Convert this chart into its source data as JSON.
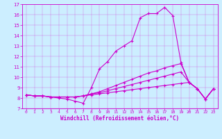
{
  "xlabel": "Windchill (Refroidissement éolien,°C)",
  "xlim": [
    -0.5,
    23.5
  ],
  "ylim": [
    7,
    17
  ],
  "yticks": [
    7,
    8,
    9,
    10,
    11,
    12,
    13,
    14,
    15,
    16,
    17
  ],
  "xticks": [
    0,
    1,
    2,
    3,
    4,
    5,
    6,
    7,
    8,
    9,
    10,
    11,
    12,
    13,
    14,
    15,
    16,
    17,
    18,
    19,
    20,
    21,
    22,
    23
  ],
  "bg_color": "#cceeff",
  "line_color": "#cc00cc",
  "lines": [
    [
      8.3,
      8.2,
      8.2,
      8.1,
      8.0,
      7.9,
      7.7,
      7.5,
      9.0,
      10.8,
      11.5,
      12.5,
      13.0,
      13.5,
      15.7,
      16.1,
      16.1,
      16.7,
      15.9,
      11.4,
      9.5,
      8.9,
      7.9,
      8.9
    ],
    [
      8.3,
      8.2,
      8.2,
      8.1,
      8.1,
      8.1,
      8.1,
      8.2,
      8.4,
      8.6,
      8.9,
      9.2,
      9.5,
      9.8,
      10.1,
      10.4,
      10.6,
      10.9,
      11.1,
      11.3,
      9.5,
      8.9,
      7.9,
      8.9
    ],
    [
      8.3,
      8.2,
      8.2,
      8.1,
      8.1,
      8.1,
      8.1,
      8.2,
      8.4,
      8.5,
      8.7,
      8.9,
      9.1,
      9.3,
      9.5,
      9.7,
      9.9,
      10.1,
      10.3,
      10.5,
      9.5,
      8.9,
      7.9,
      8.9
    ],
    [
      8.3,
      8.2,
      8.2,
      8.1,
      8.1,
      8.1,
      8.1,
      8.2,
      8.3,
      8.4,
      8.5,
      8.6,
      8.7,
      8.8,
      8.9,
      9.0,
      9.1,
      9.2,
      9.3,
      9.4,
      9.5,
      8.9,
      7.9,
      8.9
    ]
  ]
}
